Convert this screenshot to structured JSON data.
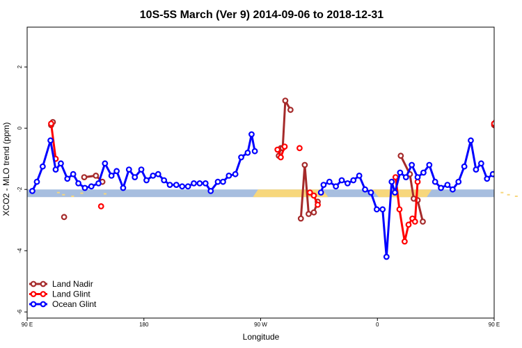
{
  "chart_data": {
    "type": "line",
    "title": "10S-5S March (Ver 9)   2014-09-06 to 2018-12-31",
    "xlabel": "Longitude",
    "ylabel": "XCO2 - MLO trend (ppm)",
    "xlim": [
      90,
      450
    ],
    "ylim": [
      -6.2,
      3.3
    ],
    "x_ticks": [
      {
        "value": 90,
        "label": "90 E"
      },
      {
        "value": 180,
        "label": "180"
      },
      {
        "value": 270,
        "label": "90 W"
      },
      {
        "value": 360,
        "label": "0"
      },
      {
        "value": 450,
        "label": "90 E"
      },
      {
        "value": 540,
        "label": "180"
      }
    ],
    "y_ticks": [
      {
        "value": 2,
        "label": "2"
      },
      {
        "value": 0,
        "label": "0"
      },
      {
        "value": -2,
        "label": "-2"
      },
      {
        "value": -4,
        "label": "-4"
      },
      {
        "value": -6,
        "label": "-6"
      }
    ],
    "grid": false,
    "legend_position": "bottom-left",
    "land_ocean_strip": {
      "y_top": -2.0,
      "y_bottom": -2.25,
      "ocean_color": "#a7bedf",
      "land_color": "#f7d77c"
    },
    "series": [
      {
        "name": "Land Nadir",
        "color": "#a52a2a",
        "segments": [
          [
            [
              108.5,
              0.1
            ],
            [
              109.8,
              0.2
            ]
          ],
          [
            [
              118.5,
              -2.9
            ]
          ],
          [
            [
              134,
              -1.6
            ],
            [
              143,
              -1.55
            ],
            [
              148,
              -1.75
            ]
          ],
          [
            [
              284,
              -0.9
            ],
            [
              285.6,
              -0.65
            ],
            [
              287,
              -0.65
            ],
            [
              289,
              0.9
            ],
            [
              293,
              0.6
            ]
          ],
          [
            [
              301,
              -2.95
            ],
            [
              304,
              -1.2
            ],
            [
              307,
              -2.8
            ],
            [
              311,
              -2.75
            ],
            [
              314,
              -2.4
            ]
          ],
          [
            [
              378,
              -0.9
            ],
            [
              385,
              -1.5
            ],
            [
              388,
              -2.3
            ],
            [
              391,
              -2.35
            ],
            [
              395,
              -3.05
            ]
          ],
          [
            [
              450,
              0.1
            ],
            [
              451.3,
              0.2
            ]
          ],
          [
            [
              460,
              -2.9
            ]
          ],
          [
            [
              475.5,
              -1.6
            ],
            [
              484.5,
              -1.55
            ],
            [
              489.5,
              -1.75
            ]
          ]
        ]
      },
      {
        "name": "Land Glint",
        "color": "#ff0000",
        "segments": [
          [
            [
              108.5,
              0.15
            ],
            [
              112,
              -1.0
            ]
          ],
          [
            [
              147,
              -2.55
            ]
          ],
          [
            [
              283,
              -0.7
            ],
            [
              285.5,
              -0.95
            ],
            [
              288.5,
              -0.6
            ]
          ],
          [
            [
              300,
              -0.65
            ]
          ],
          [
            [
              308,
              -2.1
            ],
            [
              311,
              -2.2
            ],
            [
              314,
              -2.5
            ]
          ],
          [
            [
              374,
              -1.6
            ],
            [
              377,
              -2.65
            ],
            [
              381,
              -3.7
            ],
            [
              384,
              -3.15
            ],
            [
              387,
              -2.95
            ],
            [
              389,
              -3.05
            ],
            [
              391,
              -1.75
            ]
          ],
          [
            [
              450,
              0.15
            ],
            [
              453.5,
              -1.0
            ]
          ],
          [
            [
              488.5,
              -2.55
            ]
          ]
        ]
      },
      {
        "name": "Ocean Glint",
        "color": "#0000ff",
        "segments": [
          [
            [
              94,
              -2.05
            ],
            [
              97.5,
              -1.75
            ],
            [
              102,
              -1.25
            ],
            [
              108,
              -0.4
            ],
            [
              112,
              -1.35
            ],
            [
              116,
              -1.15
            ],
            [
              121,
              -1.65
            ],
            [
              125.5,
              -1.5
            ],
            [
              129.5,
              -1.8
            ],
            [
              134.5,
              -1.95
            ],
            [
              139.5,
              -1.9
            ],
            [
              145,
              -1.8
            ],
            [
              150,
              -1.15
            ],
            [
              155,
              -1.55
            ],
            [
              159,
              -1.4
            ],
            [
              164,
              -1.95
            ],
            [
              168.5,
              -1.35
            ],
            [
              173,
              -1.6
            ],
            [
              178,
              -1.35
            ],
            [
              182,
              -1.7
            ],
            [
              187,
              -1.55
            ],
            [
              191,
              -1.5
            ],
            [
              195.5,
              -1.7
            ],
            [
              200,
              -1.85
            ],
            [
              205,
              -1.85
            ],
            [
              209.5,
              -1.9
            ],
            [
              214,
              -1.9
            ],
            [
              218.5,
              -1.8
            ],
            [
              223,
              -1.8
            ],
            [
              227.5,
              -1.8
            ],
            [
              231.5,
              -2.05
            ],
            [
              237,
              -1.75
            ],
            [
              241,
              -1.75
            ],
            [
              245.5,
              -1.55
            ],
            [
              250.5,
              -1.5
            ],
            [
              255,
              -0.95
            ],
            [
              260,
              -0.8
            ],
            [
              263,
              -0.2
            ],
            [
              265.5,
              -0.75
            ]
          ],
          [
            [
              316.5,
              -2.1
            ],
            [
              318.5,
              -1.85
            ],
            [
              323,
              -1.75
            ],
            [
              328,
              -1.9
            ],
            [
              332.5,
              -1.7
            ],
            [
              337,
              -1.8
            ],
            [
              341.5,
              -1.7
            ],
            [
              346,
              -1.55
            ],
            [
              350.5,
              -2.0
            ],
            [
              355,
              -2.1
            ],
            [
              359.5,
              -2.65
            ],
            [
              364,
              -2.65
            ],
            [
              367,
              -4.2
            ],
            [
              371,
              -1.75
            ],
            [
              373.5,
              -2.1
            ],
            [
              377.5,
              -1.45
            ],
            [
              382,
              -1.6
            ],
            [
              386.5,
              -1.2
            ],
            [
              391,
              -1.6
            ],
            [
              395.5,
              -1.45
            ],
            [
              400,
              -1.2
            ],
            [
              404.5,
              -1.75
            ],
            [
              409,
              -1.95
            ],
            [
              414,
              -1.85
            ],
            [
              418,
              -2.0
            ],
            [
              422.5,
              -1.75
            ],
            [
              427,
              -1.25
            ],
            [
              432,
              -0.4
            ],
            [
              436,
              -1.35
            ],
            [
              440,
              -1.15
            ],
            [
              444.5,
              -1.65
            ],
            [
              449,
              -1.5
            ],
            [
              453.5,
              -1.8
            ],
            [
              458,
              -1.95
            ]
          ]
        ]
      }
    ]
  }
}
